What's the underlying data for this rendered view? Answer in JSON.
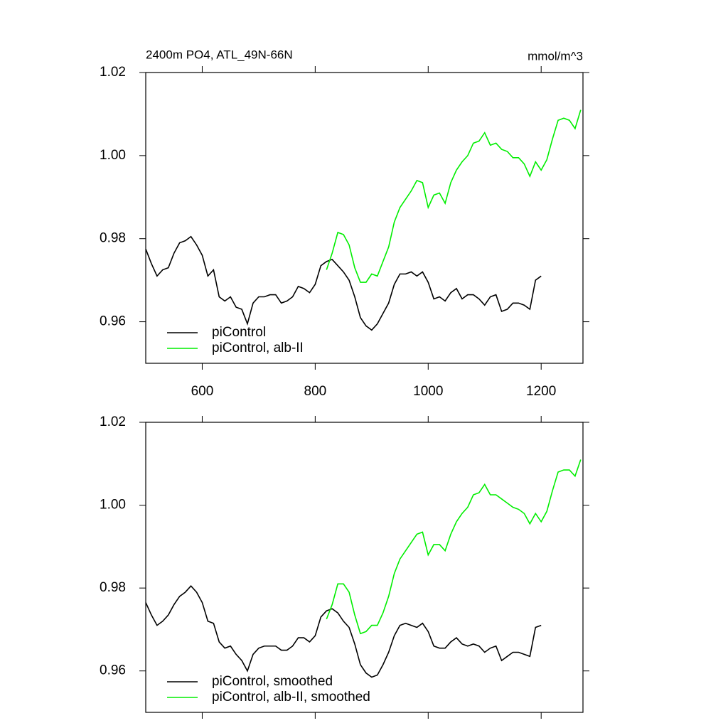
{
  "chart_data": [
    {
      "type": "line",
      "title": "2400m PO4, ATL_49N-66N",
      "units": "mmol/m^3",
      "xlim": [
        500,
        1274
      ],
      "ylim": [
        0.95,
        1.02
      ],
      "xticks": [
        600,
        800,
        1000,
        1200
      ],
      "yticks": [
        0.96,
        0.98,
        {
          "value": 1,
          "label": "1.00"
        },
        1.02
      ],
      "legend": "lower left",
      "series": [
        {
          "name": "piControl",
          "color": "#000000",
          "x": [
            500,
            510,
            520,
            530,
            540,
            550,
            560,
            570,
            580,
            590,
            600,
            610,
            620,
            630,
            640,
            650,
            660,
            670,
            680,
            690,
            700,
            710,
            720,
            730,
            740,
            750,
            760,
            770,
            780,
            790,
            800,
            810,
            820,
            830,
            840,
            850,
            860,
            870,
            880,
            890,
            900,
            910,
            920,
            930,
            940,
            950,
            960,
            970,
            980,
            990,
            1000,
            1010,
            1020,
            1030,
            1040,
            1050,
            1060,
            1070,
            1080,
            1090,
            1100,
            1110,
            1120,
            1130,
            1140,
            1150,
            1160,
            1170,
            1180,
            1190,
            1200
          ],
          "values": [
            0.9775,
            0.974,
            0.971,
            0.9725,
            0.973,
            0.9765,
            0.979,
            0.9795,
            0.9805,
            0.9785,
            0.976,
            0.971,
            0.9725,
            0.966,
            0.965,
            0.966,
            0.9635,
            0.963,
            0.9595,
            0.9645,
            0.966,
            0.966,
            0.9665,
            0.9665,
            0.9645,
            0.965,
            0.966,
            0.9685,
            0.968,
            0.967,
            0.969,
            0.9735,
            0.9745,
            0.975,
            0.9735,
            0.972,
            0.97,
            0.966,
            0.961,
            0.959,
            0.958,
            0.9595,
            0.962,
            0.9645,
            0.969,
            0.9715,
            0.9715,
            0.972,
            0.971,
            0.972,
            0.9695,
            0.9655,
            0.966,
            0.965,
            0.967,
            0.968,
            0.9655,
            0.9665,
            0.9665,
            0.9655,
            0.964,
            0.966,
            0.9665,
            0.9625,
            0.963,
            0.9645,
            0.9645,
            0.964,
            0.963,
            0.97,
            0.971
          ]
        },
        {
          "name": "piControl, alb-II",
          "color": "#00ee00",
          "x": [
            820,
            830,
            840,
            850,
            860,
            870,
            880,
            890,
            900,
            910,
            920,
            930,
            940,
            950,
            960,
            970,
            980,
            990,
            1000,
            1010,
            1020,
            1030,
            1040,
            1050,
            1060,
            1070,
            1080,
            1090,
            1100,
            1110,
            1120,
            1130,
            1140,
            1150,
            1160,
            1170,
            1180,
            1190,
            1200,
            1210,
            1220,
            1230,
            1240,
            1250,
            1260,
            1270
          ],
          "values": [
            0.9725,
            0.9765,
            0.9815,
            0.981,
            0.9785,
            0.973,
            0.9695,
            0.9695,
            0.9715,
            0.971,
            0.9745,
            0.978,
            0.984,
            0.9875,
            0.9895,
            0.9915,
            0.994,
            0.9935,
            0.9875,
            0.9905,
            0.991,
            0.9885,
            0.9935,
            0.9965,
            0.9985,
            1.0,
            1.003,
            1.0035,
            1.0055,
            1.0025,
            1.003,
            1.0015,
            1.001,
            0.9995,
            0.9995,
            0.998,
            0.995,
            0.9985,
            0.9965,
            0.999,
            1.004,
            1.0085,
            1.009,
            1.0085,
            1.0065,
            1.011
          ]
        }
      ]
    },
    {
      "type": "line",
      "xlim": [
        500,
        1274
      ],
      "ylim": [
        0.95,
        1.02
      ],
      "xticks": [
        600,
        800,
        1000,
        1200
      ],
      "xtick_labels": false,
      "yticks": [
        0.96,
        0.98,
        {
          "value": 1,
          "label": "1.00"
        },
        1.02
      ],
      "legend": "lower left",
      "series": [
        {
          "name": "piControl, smoothed",
          "color": "#000000",
          "x": [
            500,
            510,
            520,
            530,
            540,
            550,
            560,
            570,
            580,
            590,
            600,
            610,
            620,
            630,
            640,
            650,
            660,
            670,
            680,
            690,
            700,
            710,
            720,
            730,
            740,
            750,
            760,
            770,
            780,
            790,
            800,
            810,
            820,
            830,
            840,
            850,
            860,
            870,
            880,
            890,
            900,
            910,
            920,
            930,
            940,
            950,
            960,
            970,
            980,
            990,
            1000,
            1010,
            1020,
            1030,
            1040,
            1050,
            1060,
            1070,
            1080,
            1090,
            1100,
            1110,
            1120,
            1130,
            1140,
            1150,
            1160,
            1170,
            1180,
            1190,
            1200
          ],
          "values": [
            0.9765,
            0.9735,
            0.971,
            0.972,
            0.9735,
            0.976,
            0.978,
            0.979,
            0.9805,
            0.979,
            0.9765,
            0.972,
            0.9715,
            0.967,
            0.9655,
            0.966,
            0.964,
            0.9625,
            0.96,
            0.964,
            0.9655,
            0.966,
            0.966,
            0.966,
            0.965,
            0.965,
            0.966,
            0.968,
            0.968,
            0.967,
            0.9685,
            0.973,
            0.9745,
            0.975,
            0.974,
            0.972,
            0.9705,
            0.9665,
            0.9615,
            0.9595,
            0.9585,
            0.959,
            0.9615,
            0.9645,
            0.9685,
            0.971,
            0.9715,
            0.971,
            0.9705,
            0.9715,
            0.9695,
            0.966,
            0.9655,
            0.9655,
            0.967,
            0.968,
            0.9665,
            0.966,
            0.9665,
            0.966,
            0.9645,
            0.9655,
            0.966,
            0.9625,
            0.9635,
            0.9645,
            0.9645,
            0.964,
            0.9635,
            0.9705,
            0.971
          ]
        },
        {
          "name": "piControl, alb-II, smoothed",
          "color": "#00ee00",
          "x": [
            820,
            830,
            840,
            850,
            860,
            870,
            880,
            890,
            900,
            910,
            920,
            930,
            940,
            950,
            960,
            970,
            980,
            990,
            1000,
            1010,
            1020,
            1030,
            1040,
            1050,
            1060,
            1070,
            1080,
            1090,
            1100,
            1110,
            1120,
            1130,
            1140,
            1150,
            1160,
            1170,
            1180,
            1190,
            1200,
            1210,
            1220,
            1230,
            1240,
            1250,
            1260,
            1270
          ],
          "values": [
            0.9725,
            0.976,
            0.981,
            0.981,
            0.979,
            0.9735,
            0.969,
            0.9695,
            0.971,
            0.971,
            0.974,
            0.978,
            0.9835,
            0.987,
            0.989,
            0.991,
            0.993,
            0.9935,
            0.988,
            0.9905,
            0.9905,
            0.989,
            0.993,
            0.996,
            0.998,
            0.9995,
            1.0025,
            1.003,
            1.005,
            1.0025,
            1.0025,
            1.0015,
            1.0005,
            0.9995,
            0.999,
            0.998,
            0.9955,
            0.998,
            0.996,
            0.9985,
            1.0035,
            1.008,
            1.0085,
            1.0085,
            1.007,
            1.011
          ]
        }
      ]
    }
  ]
}
